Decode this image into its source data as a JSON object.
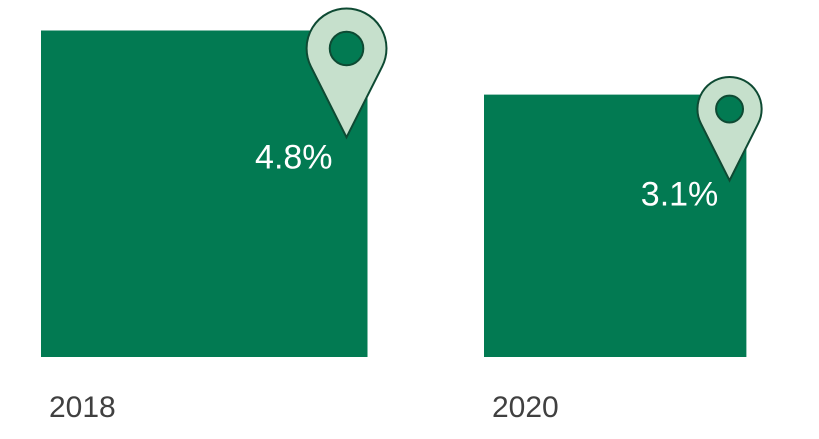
{
  "chart_data": {
    "type": "bar",
    "categories": [
      "2018",
      "2020"
    ],
    "values": [
      4.8,
      3.1
    ],
    "value_labels": [
      "4.8%",
      "3.1%"
    ],
    "unit": "%",
    "colors": {
      "bar": "#027a52",
      "pin_fill": "#c6e0cc",
      "pin_stroke": "#0e4a33",
      "pin_dot": "#027a52",
      "value_text": "#ffffff",
      "category_text": "#404040"
    },
    "icon": "map-pin-icon",
    "grid": false,
    "legend": "none"
  }
}
